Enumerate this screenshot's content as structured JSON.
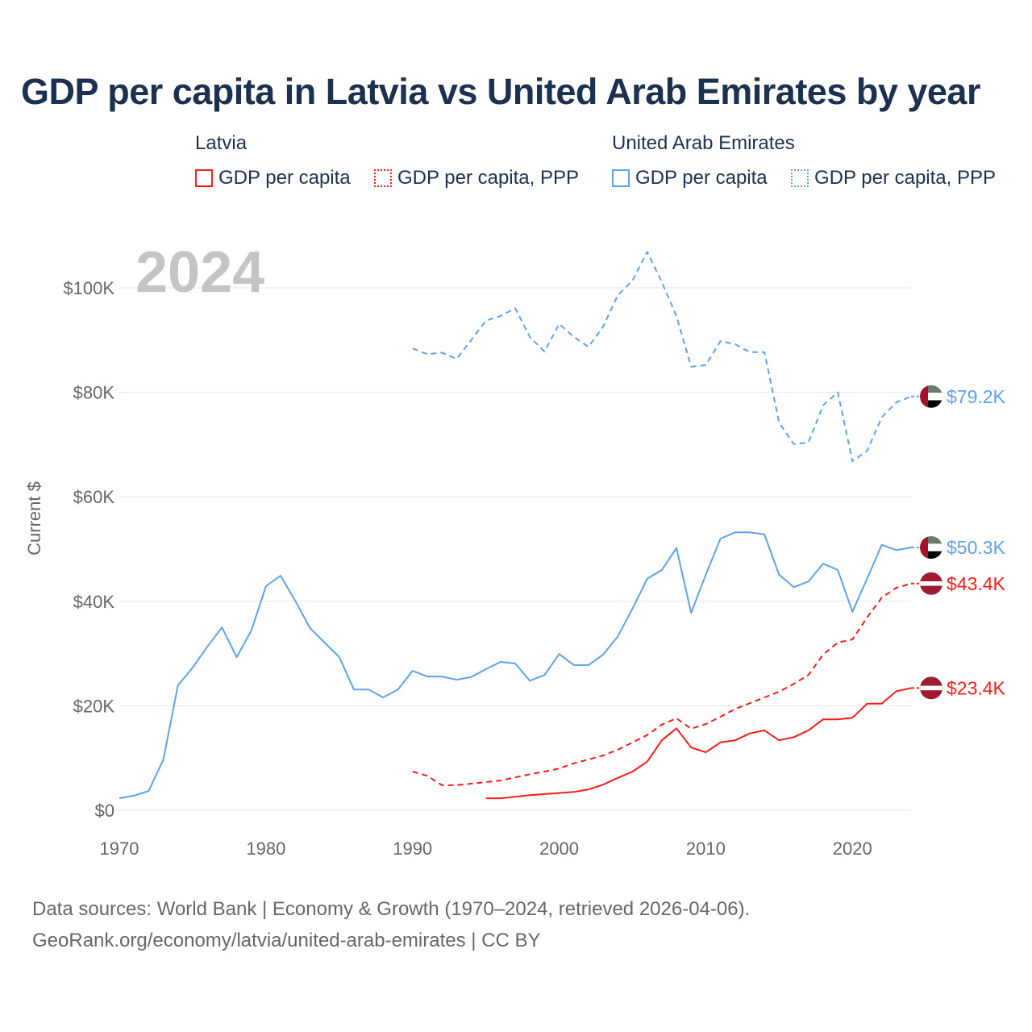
{
  "chart_data": {
    "type": "line",
    "title": "GDP per capita in Latvia vs United Arab Emirates by year",
    "year_label": "2024",
    "xlabel": "",
    "ylabel": "Current $",
    "xlim": [
      1970,
      2024
    ],
    "ylim": [
      0,
      110000
    ],
    "x_ticks": [
      1970,
      1980,
      1990,
      2000,
      2010,
      2020
    ],
    "x_tick_labels": [
      "1970",
      "1980",
      "1990",
      "2000",
      "2010",
      "2020"
    ],
    "y_ticks": [
      0,
      20000,
      40000,
      60000,
      80000,
      100000
    ],
    "y_tick_labels": [
      "$0",
      "$20K",
      "$40K",
      "$60K",
      "$80K",
      "$100K"
    ],
    "grid": true,
    "legend": {
      "groups": [
        {
          "country": "Latvia",
          "items": [
            "GDP per capita",
            "GDP per capita, PPP"
          ]
        },
        {
          "country": "United Arab Emirates",
          "items": [
            "GDP per capita",
            "GDP per capita, PPP"
          ]
        }
      ],
      "placement": "top"
    },
    "series": [
      {
        "name": "United Arab Emirates GDP per capita, PPP",
        "color": "#5fa2e8",
        "dash": true,
        "end_label": "$79.2K",
        "flag": "uae",
        "start_year": 1990,
        "values": [
          88.4,
          87.3,
          87.6,
          86.4,
          90.0,
          93.7,
          94.6,
          96.1,
          90.6,
          87.8,
          93.1,
          90.6,
          88.7,
          92.6,
          98.6,
          101.4,
          106.9,
          101.1,
          94.6,
          84.9,
          85.2,
          89.8,
          89.2,
          87.7,
          87.7,
          74.2,
          70.1,
          70.4,
          77.5,
          80.0,
          66.8,
          68.8,
          75.2,
          78.1,
          79.2
        ]
      },
      {
        "name": "United Arab Emirates GDP per capita",
        "color": "#5fa2e8",
        "dash": false,
        "end_label": "$50.3K",
        "flag": "uae",
        "start_year": 1970,
        "values": [
          2.3,
          2.8,
          3.7,
          9.7,
          23.9,
          27.3,
          31.3,
          35.0,
          29.3,
          34.4,
          42.9,
          44.9,
          40.1,
          34.9,
          32.1,
          29.3,
          23.1,
          23.1,
          21.6,
          23.1,
          26.7,
          25.6,
          25.6,
          25.0,
          25.5,
          27.0,
          28.4,
          28.1,
          24.8,
          25.9,
          29.9,
          27.8,
          27.8,
          29.8,
          33.3,
          38.6,
          44.3,
          46.0,
          50.2,
          37.8,
          45.1,
          52.0,
          53.2,
          53.2,
          52.8,
          45.1,
          42.7,
          43.8,
          47.2,
          46.0,
          38.0,
          44.3,
          50.8,
          49.8,
          50.3
        ]
      },
      {
        "name": "Latvia GDP per capita, PPP",
        "color": "#ff1a1a",
        "dash": true,
        "end_label": "$43.4K",
        "flag": "latvia",
        "start_year": 1990,
        "values": [
          7.4,
          6.6,
          4.8,
          4.8,
          5.1,
          5.4,
          5.7,
          6.3,
          6.9,
          7.4,
          8.0,
          9.0,
          9.7,
          10.5,
          11.6,
          13.0,
          14.4,
          16.4,
          17.6,
          15.6,
          16.5,
          17.9,
          19.4,
          20.5,
          21.6,
          22.7,
          24.2,
          25.9,
          29.8,
          32.1,
          32.7,
          36.9,
          40.7,
          42.6,
          43.4
        ]
      },
      {
        "name": "Latvia GDP per capita",
        "color": "#ff1a1a",
        "dash": false,
        "end_label": "$23.4K",
        "flag": "latvia",
        "start_year": 1995,
        "values": [
          2.3,
          2.3,
          2.6,
          2.9,
          3.1,
          3.3,
          3.5,
          4.0,
          4.9,
          6.2,
          7.4,
          9.3,
          13.4,
          15.7,
          12.0,
          11.1,
          13.0,
          13.4,
          14.7,
          15.3,
          13.4,
          14.0,
          15.3,
          17.4,
          17.4,
          17.7,
          20.4,
          20.4,
          22.8,
          23.4
        ]
      }
    ],
    "value_unit": "thousand USD"
  },
  "footer": {
    "line1": "Data sources: World Bank | Economy & Growth (1970–2024, retrieved 2026-04-06).",
    "line2": "GeoRank.org/economy/latvia/united-arab-emirates | CC BY"
  }
}
